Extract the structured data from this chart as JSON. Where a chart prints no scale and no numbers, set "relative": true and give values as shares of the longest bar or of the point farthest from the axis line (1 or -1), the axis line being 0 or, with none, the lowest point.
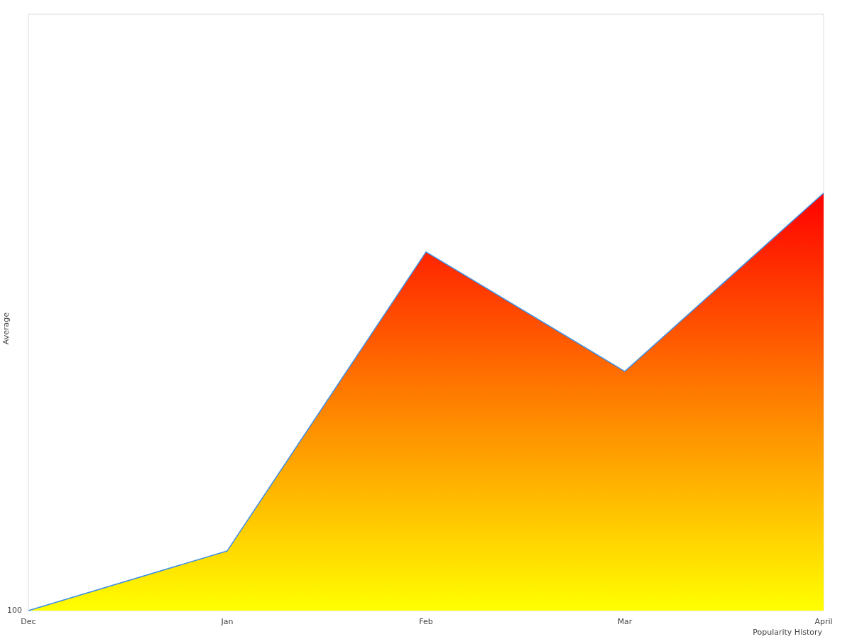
{
  "chart_data": {
    "type": "area",
    "relative": true,
    "xlabel": "Popularity History",
    "ylabel": "Average",
    "categories": [
      "Dec",
      "Jan",
      "Feb",
      "Mar",
      "April"
    ],
    "series": [
      {
        "color": "#3d8fe6",
        "values": [
          0,
          0.143,
          0.859,
          0.573,
          1
        ]
      }
    ],
    "annotations": [
      "100"
    ],
    "grid": false,
    "marker": "none"
  }
}
